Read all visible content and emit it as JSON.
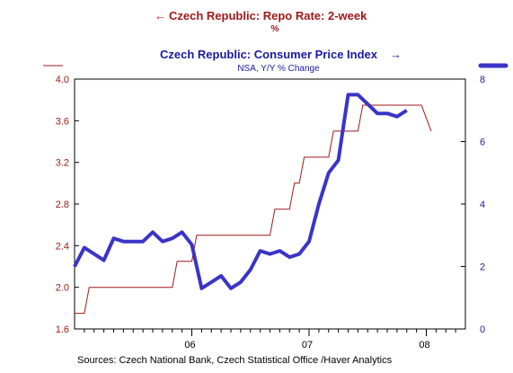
{
  "chart_data": {
    "type": "line",
    "title_left": "Czech Republic: Repo Rate: 2-week",
    "unit_left": "%",
    "title_right": "Czech Republic: Consumer Price Index",
    "unit_right": "NSA, Y/Y % Change",
    "source": "Sources:  Czech National Bank, Czech Statistical Office /Haver Analytics",
    "left_axis": {
      "ylim": [
        1.6,
        4.0
      ],
      "ticks": [
        "1.6",
        "2.0",
        "2.4",
        "2.8",
        "3.2",
        "3.6",
        "4.0"
      ]
    },
    "right_axis": {
      "ylim": [
        0,
        8
      ],
      "ticks": [
        "0",
        "2",
        "4",
        "6",
        "8"
      ]
    },
    "x_labels": [
      {
        "label": "06",
        "month": 12
      },
      {
        "label": "07",
        "month": 24
      },
      {
        "label": "08",
        "month": 36
      }
    ],
    "x_range_months": [
      0,
      40
    ],
    "grid": false,
    "colors": {
      "repo": "#a01818",
      "cpi": "#3a34c8",
      "axis_left": "#a01818",
      "axis_right": "#1a1aa0"
    },
    "series": [
      {
        "name": "Czech Republic: Repo Rate: 2-week",
        "axis": "left",
        "style": "thin-step",
        "points": [
          [
            0,
            1.75
          ],
          [
            1,
            1.75
          ],
          [
            1.5,
            2.0
          ],
          [
            10,
            2.0
          ],
          [
            10.5,
            2.25
          ],
          [
            12,
            2.25
          ],
          [
            12.5,
            2.5
          ],
          [
            20,
            2.5
          ],
          [
            20.5,
            2.75
          ],
          [
            22,
            2.75
          ],
          [
            22.5,
            3.0
          ],
          [
            23,
            3.0
          ],
          [
            23.5,
            3.25
          ],
          [
            26,
            3.25
          ],
          [
            26.5,
            3.5
          ],
          [
            29,
            3.5
          ],
          [
            29.5,
            3.75
          ],
          [
            35.5,
            3.75
          ],
          [
            36.5,
            3.5
          ]
        ]
      },
      {
        "name": "Czech Republic: Consumer Price Index",
        "axis": "right",
        "style": "thick",
        "points": [
          [
            0,
            2.0
          ],
          [
            1,
            2.6
          ],
          [
            2,
            2.4
          ],
          [
            3,
            2.2
          ],
          [
            4,
            2.9
          ],
          [
            5,
            2.8
          ],
          [
            6,
            2.8
          ],
          [
            7,
            2.8
          ],
          [
            8,
            3.1
          ],
          [
            9,
            2.8
          ],
          [
            10,
            2.9
          ],
          [
            11,
            3.1
          ],
          [
            12,
            2.7
          ],
          [
            13,
            1.3
          ],
          [
            14,
            1.5
          ],
          [
            15,
            1.7
          ],
          [
            16,
            1.3
          ],
          [
            17,
            1.5
          ],
          [
            18,
            1.9
          ],
          [
            19,
            2.5
          ],
          [
            20,
            2.4
          ],
          [
            21,
            2.5
          ],
          [
            22,
            2.3
          ],
          [
            23,
            2.4
          ],
          [
            24,
            2.8
          ],
          [
            25,
            4.0
          ],
          [
            26,
            5.0
          ],
          [
            27,
            5.4
          ],
          [
            28,
            7.5
          ],
          [
            29,
            7.5
          ],
          [
            30,
            7.2
          ],
          [
            31,
            6.9
          ],
          [
            32,
            6.9
          ],
          [
            33,
            6.8
          ],
          [
            34,
            7.0
          ]
        ]
      }
    ]
  }
}
